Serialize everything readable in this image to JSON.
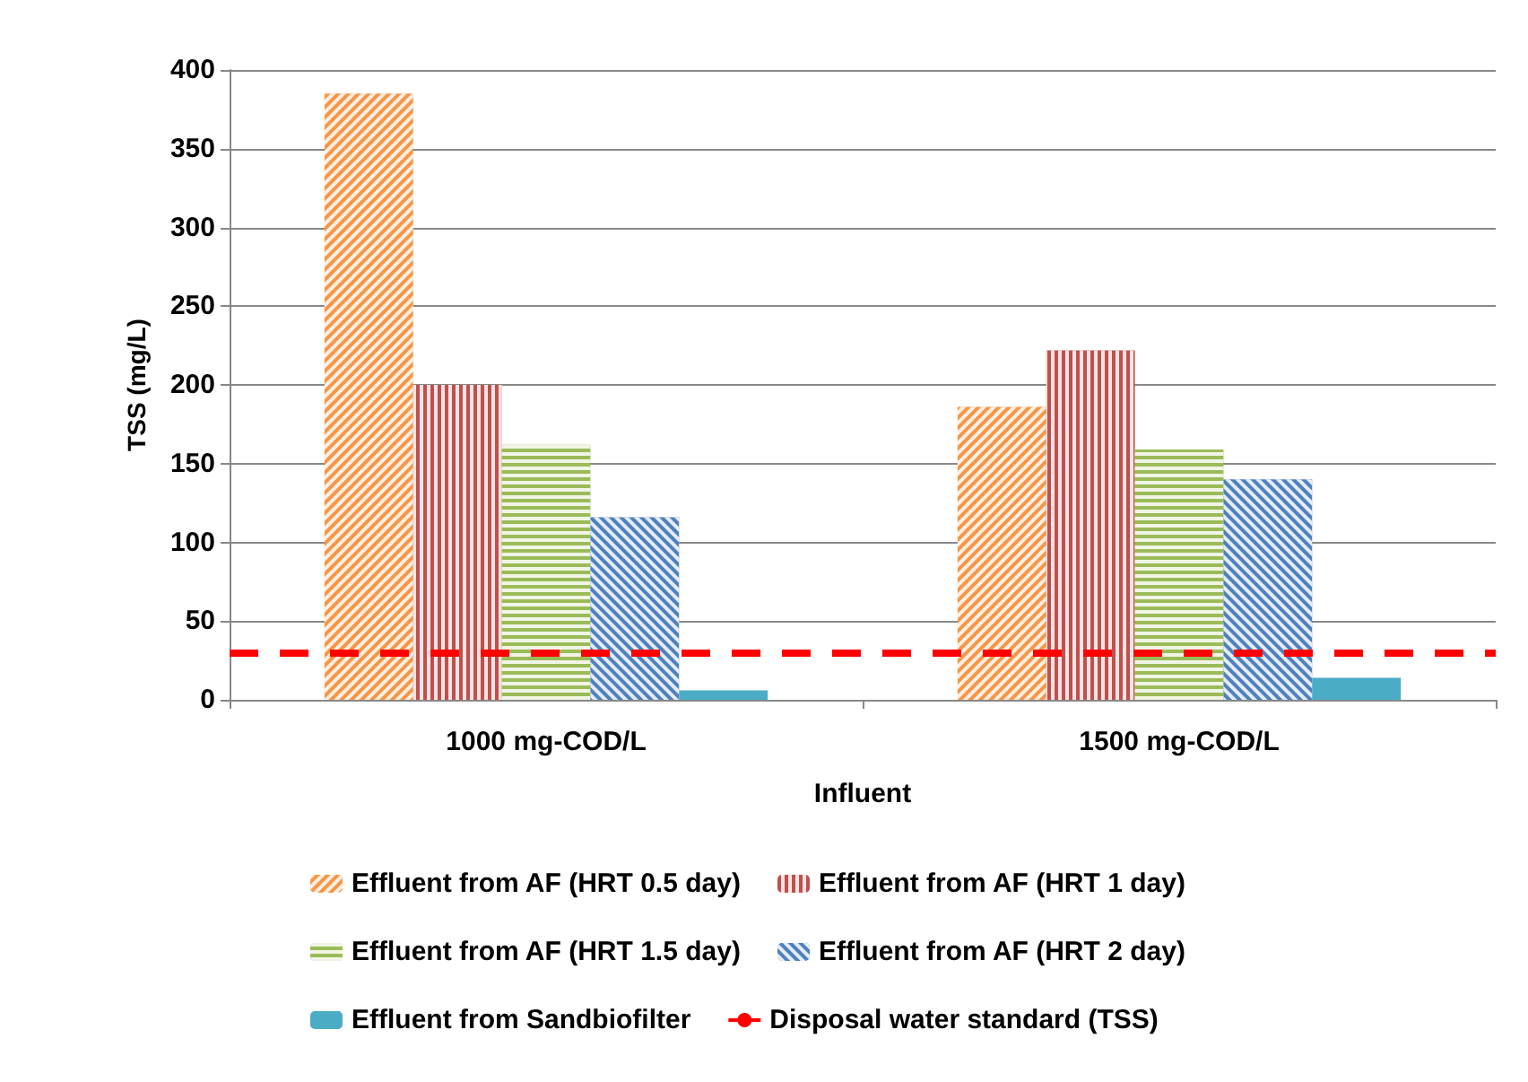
{
  "chart_data": {
    "type": "bar",
    "categories": [
      "1000 mg-COD/L",
      "1500 mg-COD/L"
    ],
    "series": [
      {
        "name": "Effluent from AF (HRT 0.5 day)",
        "color": "#f79646",
        "values": [
          385,
          186
        ]
      },
      {
        "name": "Effluent from AF (HRT 1 day)",
        "color": "#c0504d",
        "values": [
          200,
          222
        ]
      },
      {
        "name": "Effluent from AF (HRT 1.5 day)",
        "color": "#9bbb59",
        "values": [
          162,
          159
        ]
      },
      {
        "name": "Effluent from AF (HRT 2 day)",
        "color": "#4f81bd",
        "values": [
          116,
          140
        ]
      },
      {
        "name": "Effluent from Sandbiofilter",
        "color": "#4bacc6",
        "values": [
          6,
          14
        ]
      }
    ],
    "xlabel": "Influent",
    "ylabel": "TSS (mg/L)",
    "ylim": [
      0,
      400
    ],
    "yticks": [
      0,
      50,
      100,
      150,
      200,
      250,
      300,
      350,
      400
    ],
    "grid": "y",
    "legend": "bottom",
    "ref_lines": [
      {
        "axis": "y",
        "value": 30,
        "label": "Disposal water standard (TSS)",
        "color": "#ff0000",
        "line_style": "dashed"
      }
    ]
  }
}
